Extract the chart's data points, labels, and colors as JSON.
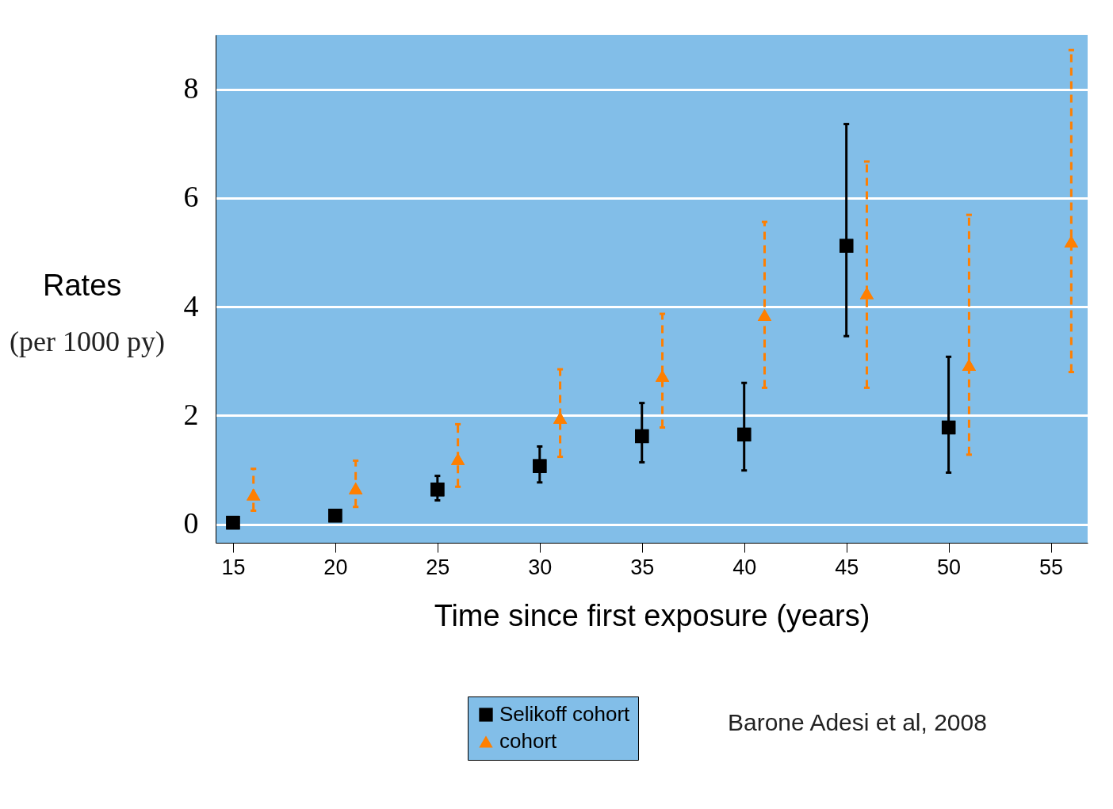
{
  "chart_data": {
    "type": "scatter",
    "xlabel": "Time since first exposure (years)",
    "ylabel": "Rates",
    "annotations": [
      "(per 1000 py)",
      "Barone Adesi et al,  2008"
    ],
    "xlim": [
      14.15,
      56.8
    ],
    "xticks": [
      15,
      20,
      25,
      30,
      35,
      40,
      45,
      50,
      55
    ],
    "ylim": [
      -0.34,
      9.0
    ],
    "yticks": [
      0,
      2,
      4,
      6,
      8
    ],
    "grid": "y",
    "legend": "bottom",
    "series": [
      {
        "name": "Selikoff cohort",
        "color": "#000000",
        "marker": "square",
        "line_style": "solid",
        "x": [
          15,
          20,
          25,
          30,
          35,
          40,
          45,
          50
        ],
        "values": [
          0.03,
          0.16,
          0.64,
          1.07,
          1.62,
          1.65,
          5.12,
          1.78
        ],
        "errors": [
          null,
          null,
          [
            0.44,
            0.89
          ],
          [
            0.77,
            1.43
          ],
          [
            1.14,
            2.23
          ],
          [
            0.99,
            2.6
          ],
          [
            3.46,
            7.36
          ],
          [
            0.95,
            3.08
          ]
        ]
      },
      {
        "name": "cohort",
        "color": "#ff7f00",
        "marker": "triangle",
        "line_style": "dashed",
        "x": [
          16,
          21,
          26,
          31,
          36,
          41,
          46,
          51,
          56
        ],
        "values": [
          0.55,
          0.66,
          1.2,
          1.96,
          2.73,
          3.85,
          4.25,
          2.93,
          5.2
        ],
        "errors": [
          [
            0.25,
            1.02
          ],
          [
            0.32,
            1.17
          ],
          [
            0.69,
            1.84
          ],
          [
            1.24,
            2.85
          ],
          [
            1.78,
            3.87
          ],
          [
            2.51,
            5.56
          ],
          [
            2.51,
            6.67
          ],
          [
            1.28,
            5.69
          ],
          [
            2.8,
            8.72
          ]
        ]
      }
    ]
  }
}
